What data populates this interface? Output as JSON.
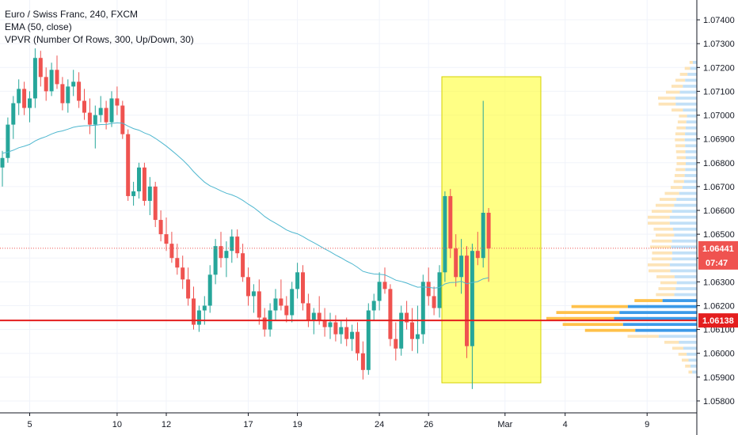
{
  "legend": {
    "line1": "Euro / Swiss Franc, 240, FXCM",
    "line2": "EMA (50, close)",
    "line3": "VPVR (Number Of Rows, 300, Up/Down, 30)"
  },
  "chart_data": {
    "type": "candlestick",
    "symbol": "Euro / Swiss Franc",
    "interval": "240",
    "source": "FXCM",
    "ylim": [
      1.0575,
      1.0745
    ],
    "y_ticks": [
      "1.05800",
      "1.05900",
      "1.06000",
      "1.06100",
      "1.06200",
      "1.06300",
      "1.06400",
      "1.06500",
      "1.06600",
      "1.06700",
      "1.06800",
      "1.06900",
      "1.07000",
      "1.07100",
      "1.07200",
      "1.07300",
      "1.07400"
    ],
    "x_ticks": [
      {
        "label": "5",
        "bar": 5
      },
      {
        "label": "10",
        "bar": 21
      },
      {
        "label": "12",
        "bar": 30
      },
      {
        "label": "17",
        "bar": 45
      },
      {
        "label": "19",
        "bar": 54
      },
      {
        "label": "24",
        "bar": 69
      },
      {
        "label": "26",
        "bar": 78
      },
      {
        "label": "Mar",
        "bar": 92
      },
      {
        "label": "4",
        "bar": 103
      },
      {
        "label": "9",
        "bar": 118
      }
    ],
    "current_price": "1.06441",
    "countdown": "07:47",
    "reference_price": "1.06138",
    "candles": [
      [
        1.0678,
        1.0685,
        1.067,
        1.0682
      ],
      [
        1.0682,
        1.0699,
        1.068,
        1.0696
      ],
      [
        1.0696,
        1.0708,
        1.069,
        1.0705
      ],
      [
        1.0705,
        1.0715,
        1.07,
        1.0711
      ],
      [
        1.0711,
        1.0714,
        1.07,
        1.0703
      ],
      [
        1.0703,
        1.071,
        1.0697,
        1.0707
      ],
      [
        1.0707,
        1.0728,
        1.0703,
        1.0724
      ],
      [
        1.0724,
        1.0727,
        1.0712,
        1.0716
      ],
      [
        1.0716,
        1.072,
        1.0706,
        1.071
      ],
      [
        1.071,
        1.0722,
        1.0708,
        1.0719
      ],
      [
        1.0719,
        1.0725,
        1.0711,
        1.0713
      ],
      [
        1.0713,
        1.0716,
        1.0702,
        1.0705
      ],
      [
        1.0705,
        1.0715,
        1.0701,
        1.0712
      ],
      [
        1.0712,
        1.0719,
        1.0708,
        1.0714
      ],
      [
        1.0714,
        1.0718,
        1.0703,
        1.0706
      ],
      [
        1.0706,
        1.0711,
        1.0698,
        1.0701
      ],
      [
        1.0701,
        1.0707,
        1.0692,
        1.0696
      ],
      [
        1.0696,
        1.0704,
        1.0686,
        1.07
      ],
      [
        1.07,
        1.0708,
        1.0697,
        1.0703
      ],
      [
        1.0703,
        1.0706,
        1.0694,
        1.0697
      ],
      [
        1.0697,
        1.071,
        1.0695,
        1.0707
      ],
      [
        1.0707,
        1.0712,
        1.07,
        1.0704
      ],
      [
        1.0704,
        1.0706,
        1.069,
        1.0692
      ],
      [
        1.0692,
        1.0694,
        1.0664,
        1.0666
      ],
      [
        1.0666,
        1.0672,
        1.0662,
        1.0668
      ],
      [
        1.0668,
        1.068,
        1.0665,
        1.0678
      ],
      [
        1.0678,
        1.068,
        1.0662,
        1.0664
      ],
      [
        1.0664,
        1.0674,
        1.0658,
        1.067
      ],
      [
        1.067,
        1.0672,
        1.0653,
        1.0656
      ],
      [
        1.0656,
        1.066,
        1.0647,
        1.065
      ],
      [
        1.065,
        1.0657,
        1.0643,
        1.0646
      ],
      [
        1.0646,
        1.0651,
        1.0638,
        1.064
      ],
      [
        1.064,
        1.0646,
        1.0633,
        1.0636
      ],
      [
        1.0636,
        1.0641,
        1.0627,
        1.0631
      ],
      [
        1.0631,
        1.0636,
        1.062,
        1.0623
      ],
      [
        1.0623,
        1.0628,
        1.061,
        1.0612
      ],
      [
        1.0612,
        1.062,
        1.0609,
        1.0618
      ],
      [
        1.0618,
        1.0624,
        1.0612,
        1.062
      ],
      [
        1.062,
        1.0637,
        1.0617,
        1.0633
      ],
      [
        1.0633,
        1.0648,
        1.0629,
        1.0645
      ],
      [
        1.0645,
        1.0651,
        1.0636,
        1.064
      ],
      [
        1.064,
        1.0647,
        1.0632,
        1.0643
      ],
      [
        1.0643,
        1.0652,
        1.0638,
        1.0649
      ],
      [
        1.0649,
        1.0652,
        1.064,
        1.0642
      ],
      [
        1.0642,
        1.0646,
        1.063,
        1.0632
      ],
      [
        1.0632,
        1.0636,
        1.062,
        1.0624
      ],
      [
        1.0624,
        1.0629,
        1.0617,
        1.0626
      ],
      [
        1.0626,
        1.0631,
        1.0612,
        1.0615
      ],
      [
        1.0615,
        1.0619,
        1.0607,
        1.061
      ],
      [
        1.061,
        1.0621,
        1.0607,
        1.0618
      ],
      [
        1.0618,
        1.0627,
        1.0614,
        1.0623
      ],
      [
        1.0623,
        1.0631,
        1.0618,
        1.062
      ],
      [
        1.062,
        1.0624,
        1.0613,
        1.0616
      ],
      [
        1.0616,
        1.063,
        1.0613,
        1.0627
      ],
      [
        1.0627,
        1.0638,
        1.0623,
        1.0634
      ],
      [
        1.0634,
        1.0637,
        1.0618,
        1.0621
      ],
      [
        1.0621,
        1.0625,
        1.0611,
        1.0614
      ],
      [
        1.0614,
        1.0619,
        1.0608,
        1.0617
      ],
      [
        1.0617,
        1.0624,
        1.0612,
        1.0614
      ],
      [
        1.0614,
        1.0619,
        1.0607,
        1.0611
      ],
      [
        1.0611,
        1.0617,
        1.0606,
        1.0613
      ],
      [
        1.0613,
        1.0616,
        1.0605,
        1.0608
      ],
      [
        1.0608,
        1.0614,
        1.0604,
        1.0611
      ],
      [
        1.0611,
        1.0615,
        1.0603,
        1.0606
      ],
      [
        1.0606,
        1.0612,
        1.0601,
        1.0609
      ],
      [
        1.0609,
        1.0613,
        1.0597,
        1.06
      ],
      [
        1.06,
        1.0605,
        1.0589,
        1.0593
      ],
      [
        1.0593,
        1.0621,
        1.0591,
        1.0618
      ],
      [
        1.0618,
        1.0625,
        1.0614,
        1.0622
      ],
      [
        1.0622,
        1.0634,
        1.0618,
        1.063
      ],
      [
        1.063,
        1.0636,
        1.0625,
        1.0627
      ],
      [
        1.0627,
        1.0629,
        1.0603,
        1.0606
      ],
      [
        1.0606,
        1.0613,
        1.0597,
        1.0602
      ],
      [
        1.0602,
        1.062,
        1.0599,
        1.0617
      ],
      [
        1.0617,
        1.0622,
        1.061,
        1.0613
      ],
      [
        1.0613,
        1.0619,
        1.0601,
        1.0606
      ],
      [
        1.0606,
        1.062,
        1.06,
        1.0608
      ],
      [
        1.0608,
        1.0633,
        1.0604,
        1.063
      ],
      [
        1.063,
        1.0636,
        1.062,
        1.0624
      ],
      [
        1.0624,
        1.0628,
        1.0616,
        1.0619
      ],
      [
        1.0619,
        1.0637,
        1.0615,
        1.0634
      ],
      [
        1.0634,
        1.0668,
        1.063,
        1.0666
      ],
      [
        1.0666,
        1.0669,
        1.064,
        1.0644
      ],
      [
        1.0644,
        1.065,
        1.0628,
        1.0632
      ],
      [
        1.0632,
        1.0648,
        1.0625,
        1.0641
      ],
      [
        1.0641,
        1.0645,
        1.0598,
        1.0603
      ],
      [
        1.0603,
        1.0646,
        1.0585,
        1.0643
      ],
      [
        1.0643,
        1.0651,
        1.0637,
        1.064
      ],
      [
        1.064,
        1.0706,
        1.0636,
        1.0659
      ],
      [
        1.0659,
        1.0661,
        1.063,
        1.0644
      ]
    ]
  }
}
